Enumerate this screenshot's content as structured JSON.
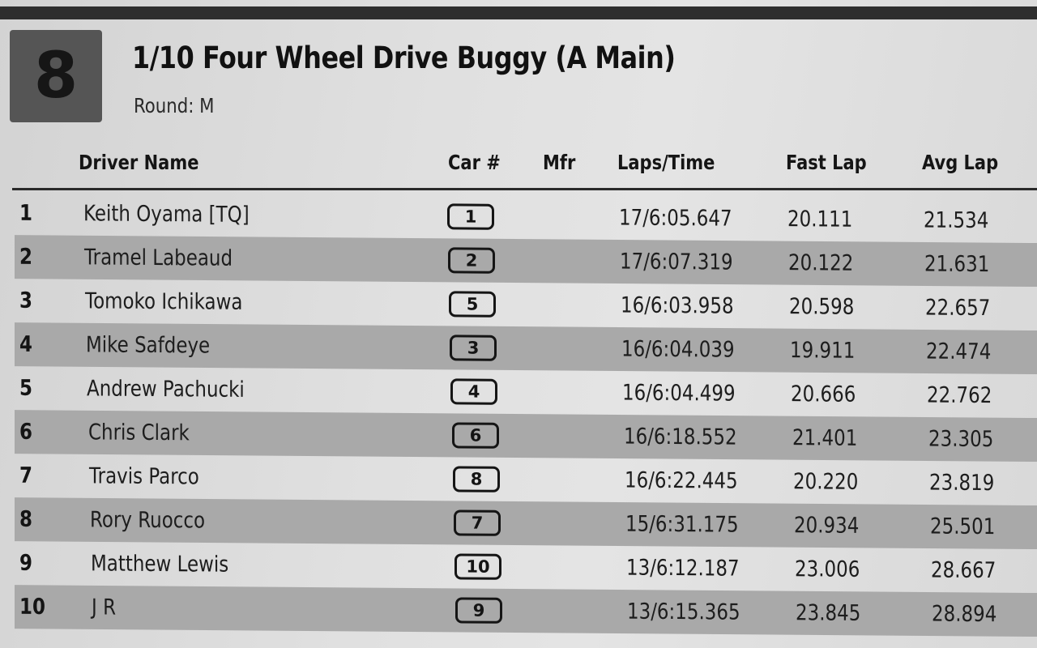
{
  "race": {
    "number": "8",
    "title": "1/10 Four Wheel Drive Buggy (A Main)",
    "round": "Round: M"
  },
  "columns": {
    "driver": "Driver Name",
    "car": "Car #",
    "mfr": "Mfr",
    "laps_time": "Laps/Time",
    "fast_lap": "Fast Lap",
    "avg_lap": "Avg Lap"
  },
  "rows": [
    {
      "pos": "1",
      "driver": "Keith Oyama [TQ]",
      "car": "1",
      "mfr": "",
      "laps_time": "17/6:05.647",
      "fast_lap": "20.111",
      "avg_lap": "21.534"
    },
    {
      "pos": "2",
      "driver": "Tramel Labeaud",
      "car": "2",
      "mfr": "",
      "laps_time": "17/6:07.319",
      "fast_lap": "20.122",
      "avg_lap": "21.631"
    },
    {
      "pos": "3",
      "driver": "Tomoko Ichikawa",
      "car": "5",
      "mfr": "",
      "laps_time": "16/6:03.958",
      "fast_lap": "20.598",
      "avg_lap": "22.657"
    },
    {
      "pos": "4",
      "driver": "Mike Safdeye",
      "car": "3",
      "mfr": "",
      "laps_time": "16/6:04.039",
      "fast_lap": "19.911",
      "avg_lap": "22.474"
    },
    {
      "pos": "5",
      "driver": "Andrew Pachucki",
      "car": "4",
      "mfr": "",
      "laps_time": "16/6:04.499",
      "fast_lap": "20.666",
      "avg_lap": "22.762"
    },
    {
      "pos": "6",
      "driver": "Chris Clark",
      "car": "6",
      "mfr": "",
      "laps_time": "16/6:18.552",
      "fast_lap": "21.401",
      "avg_lap": "23.305"
    },
    {
      "pos": "7",
      "driver": "Travis Parco",
      "car": "8",
      "mfr": "",
      "laps_time": "16/6:22.445",
      "fast_lap": "20.220",
      "avg_lap": "23.819"
    },
    {
      "pos": "8",
      "driver": "Rory Ruocco",
      "car": "7",
      "mfr": "",
      "laps_time": "15/6:31.175",
      "fast_lap": "20.934",
      "avg_lap": "25.501"
    },
    {
      "pos": "9",
      "driver": "Matthew Lewis",
      "car": "10",
      "mfr": "",
      "laps_time": "13/6:12.187",
      "fast_lap": "23.006",
      "avg_lap": "28.667"
    },
    {
      "pos": "10",
      "driver": "J R",
      "car": "9",
      "mfr": "",
      "laps_time": "13/6:15.365",
      "fast_lap": "23.845",
      "avg_lap": "28.894"
    }
  ]
}
